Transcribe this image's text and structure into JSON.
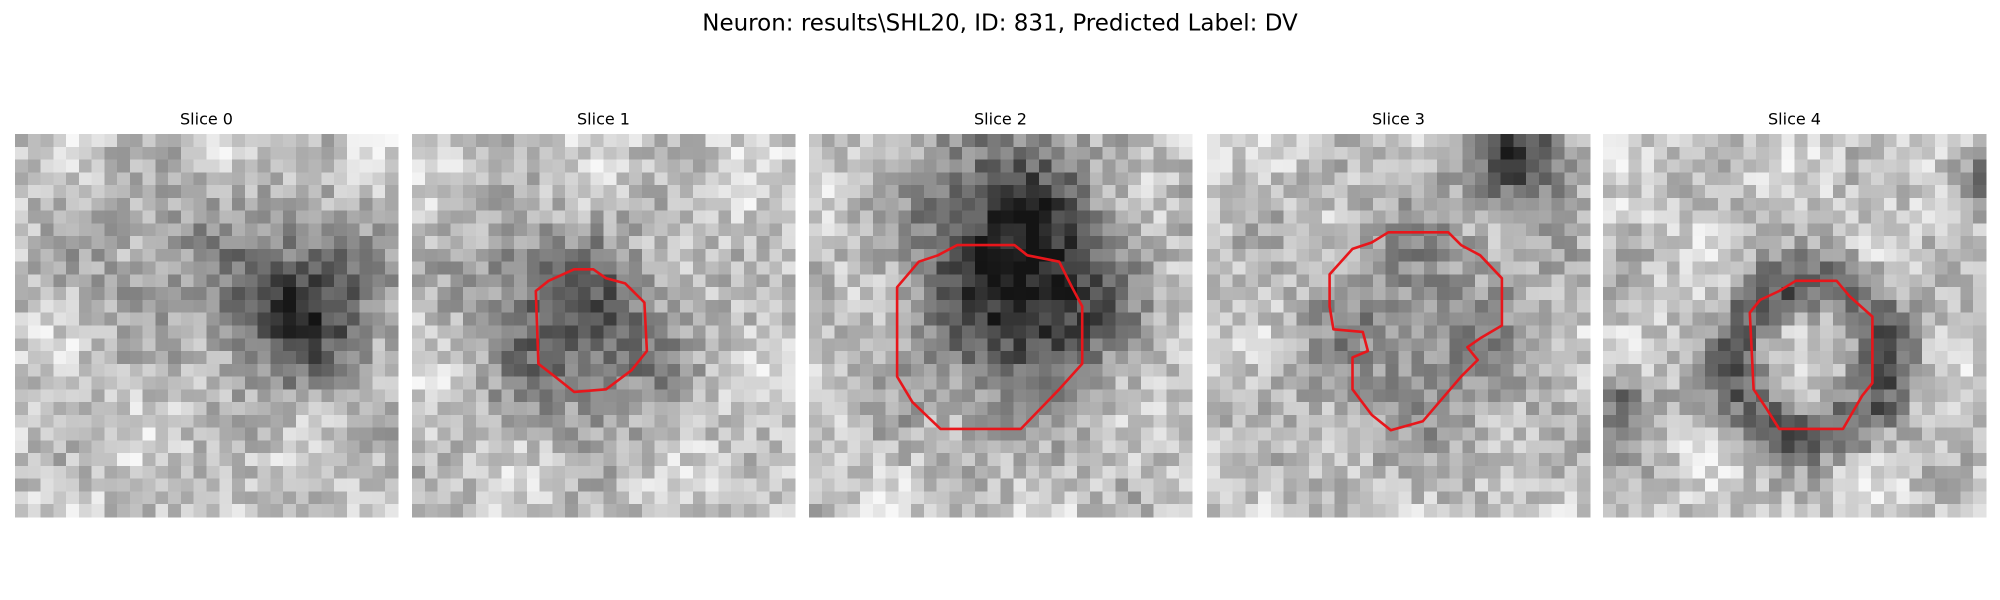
{
  "title": "Neuron: results\\SHL20, ID: 831, Predicted Label: DV",
  "panels": [
    {
      "title": "Slice 0"
    },
    {
      "title": "Slice 1"
    },
    {
      "title": "Slice 2"
    },
    {
      "title": "Slice 3"
    },
    {
      "title": "Slice 4"
    }
  ]
}
